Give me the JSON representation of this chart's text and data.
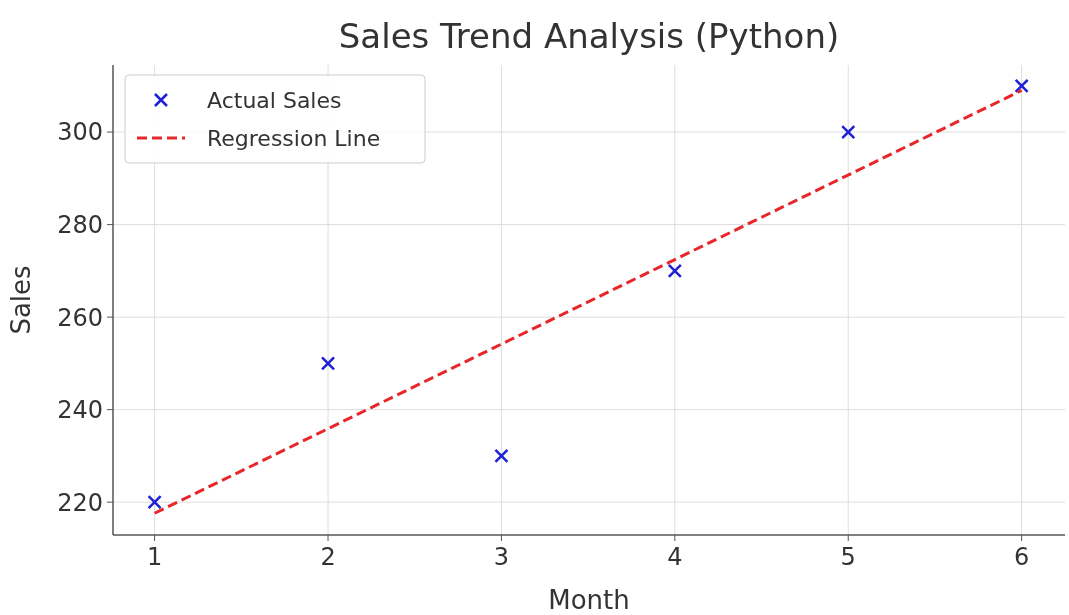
{
  "chart_data": {
    "type": "scatter",
    "title": "Sales Trend Analysis (Python)",
    "xlabel": "Month",
    "ylabel": "Sales",
    "x": [
      1,
      2,
      3,
      4,
      5,
      6
    ],
    "series": [
      {
        "name": "Actual Sales",
        "color": "#1f1fd6",
        "marker": "cross",
        "values": [
          220,
          250,
          230,
          270,
          300,
          310
        ]
      },
      {
        "name": "Regression Line",
        "type": "line",
        "color": "#e8262a",
        "line_style": "dashed",
        "x": [
          1,
          6
        ],
        "values": [
          217.6,
          309
        ]
      }
    ],
    "xlim": [
      0.76,
      6.25
    ],
    "xticks": [
      1,
      2,
      3,
      4,
      5,
      6
    ],
    "ylim": [
      212.9,
      314.5
    ],
    "yticks": [
      220,
      240,
      260,
      280,
      300
    ],
    "grid": true,
    "legend": "top left"
  }
}
